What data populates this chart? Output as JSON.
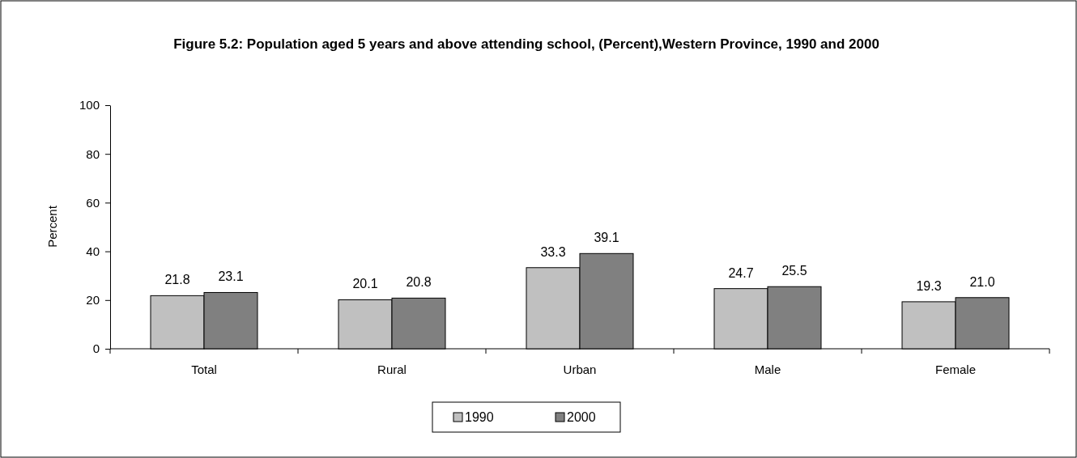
{
  "chart_data": {
    "type": "bar",
    "title": "Figure 5.2: Population aged 5 years and above attending school, (Percent),Western Province, 1990 and 2000",
    "ylabel": "Percent",
    "categories": [
      "Total",
      "Rural",
      "Urban",
      "Male",
      "Female"
    ],
    "series": [
      {
        "name": "1990",
        "color": "#c0c0c0",
        "values": [
          21.8,
          20.1,
          33.3,
          24.7,
          19.3
        ],
        "value_labels": [
          "21.8",
          "20.1",
          "33.3",
          "24.7",
          "19.3"
        ]
      },
      {
        "name": "2000",
        "color": "#808080",
        "values": [
          23.1,
          20.8,
          39.1,
          25.5,
          21.0
        ],
        "value_labels": [
          "23.1",
          "20.8",
          "39.1",
          "25.5",
          "21.0"
        ]
      }
    ],
    "ylim": [
      0,
      100
    ],
    "yticks": [
      0,
      20,
      40,
      60,
      80,
      100
    ],
    "grid": false,
    "legend": "bottom"
  }
}
